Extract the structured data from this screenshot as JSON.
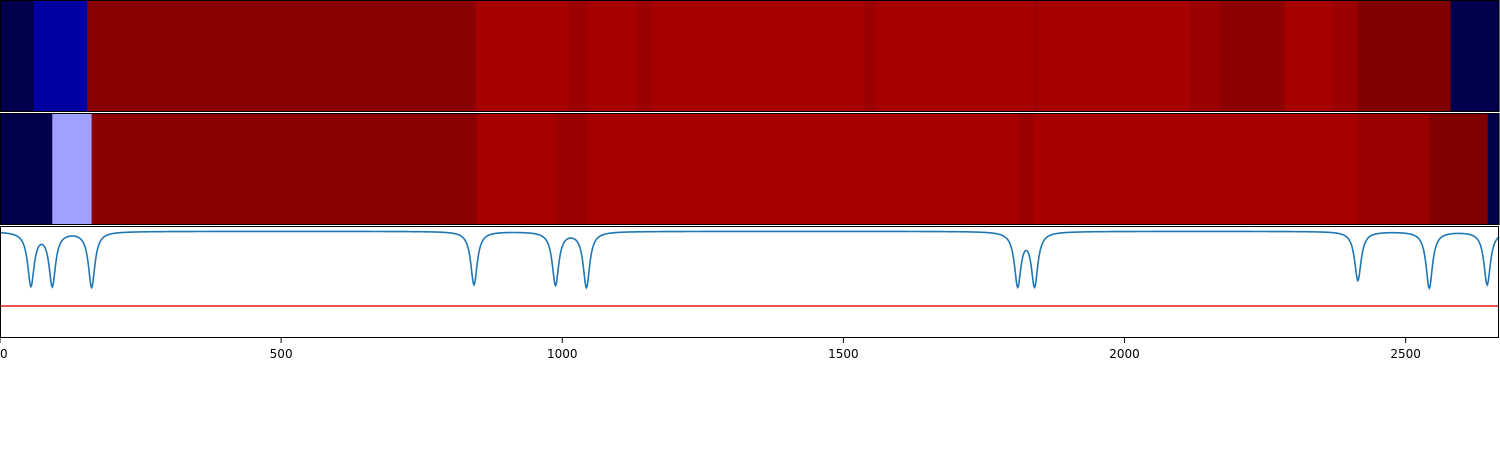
{
  "chart_data": [
    {
      "type": "heatmap",
      "row": "top",
      "xlim": [
        0,
        2666
      ],
      "colormap": "seismic",
      "segments": [
        {
          "x0": 0,
          "x1": 60,
          "color": "#00004c"
        },
        {
          "x0": 60,
          "x1": 155,
          "color": "#0000a3"
        },
        {
          "x0": 155,
          "x1": 846,
          "color": "#8b0000"
        },
        {
          "x0": 846,
          "x1": 1012,
          "color": "#a70000"
        },
        {
          "x0": 1012,
          "x1": 1046,
          "color": "#9a0000"
        },
        {
          "x0": 1046,
          "x1": 1133,
          "color": "#a70000"
        },
        {
          "x0": 1133,
          "x1": 1158,
          "color": "#9a0000"
        },
        {
          "x0": 1158,
          "x1": 1536,
          "color": "#a70000"
        },
        {
          "x0": 1536,
          "x1": 1558,
          "color": "#9a0000"
        },
        {
          "x0": 1558,
          "x1": 1840,
          "color": "#a70000"
        },
        {
          "x0": 1840,
          "x1": 1844,
          "color": "#9a0000"
        },
        {
          "x0": 1844,
          "x1": 2117,
          "color": "#a70000"
        },
        {
          "x0": 2117,
          "x1": 2170,
          "color": "#9a0000"
        },
        {
          "x0": 2170,
          "x1": 2285,
          "color": "#8e0000"
        },
        {
          "x0": 2285,
          "x1": 2370,
          "color": "#a70000"
        },
        {
          "x0": 2370,
          "x1": 2414,
          "color": "#9a0000"
        },
        {
          "x0": 2414,
          "x1": 2580,
          "color": "#800000"
        },
        {
          "x0": 2580,
          "x1": 2666,
          "color": "#00004c"
        }
      ]
    },
    {
      "type": "heatmap",
      "row": "middle",
      "xlim": [
        0,
        2666
      ],
      "colormap": "seismic",
      "segments": [
        {
          "x0": 0,
          "x1": 93,
          "color": "#00004c"
        },
        {
          "x0": 93,
          "x1": 163,
          "color": "#a0a0ff"
        },
        {
          "x0": 163,
          "x1": 848,
          "color": "#8b0000"
        },
        {
          "x0": 848,
          "x1": 988,
          "color": "#a70000"
        },
        {
          "x0": 988,
          "x1": 1044,
          "color": "#9a0000"
        },
        {
          "x0": 1044,
          "x1": 1810,
          "color": "#a70000"
        },
        {
          "x0": 1810,
          "x1": 1838,
          "color": "#9a0000"
        },
        {
          "x0": 1838,
          "x1": 2415,
          "color": "#a70000"
        },
        {
          "x0": 2415,
          "x1": 2542,
          "color": "#9a0000"
        },
        {
          "x0": 2542,
          "x1": 2646,
          "color": "#800000"
        },
        {
          "x0": 2646,
          "x1": 2666,
          "color": "#00004c"
        }
      ]
    },
    {
      "type": "line",
      "row": "bottom",
      "xlim": [
        0,
        2666
      ],
      "ylim": [
        -1.0,
        0.05
      ],
      "baseline": 0,
      "dips": [
        {
          "x": 55,
          "depth": 0.5
        },
        {
          "x": 93,
          "depth": 0.5
        },
        {
          "x": 163,
          "depth": 0.52
        },
        {
          "x": 843,
          "depth": 0.5
        },
        {
          "x": 988,
          "depth": 0.5
        },
        {
          "x": 1043,
          "depth": 0.52
        },
        {
          "x": 1810,
          "depth": 0.5
        },
        {
          "x": 1840,
          "depth": 0.5
        },
        {
          "x": 2415,
          "depth": 0.46
        },
        {
          "x": 2542,
          "depth": 0.53
        },
        {
          "x": 2645,
          "depth": 0.5
        }
      ],
      "threshold": -0.7,
      "line_color": "#1f77b4",
      "threshold_color": "#e41a1c",
      "xticks": [
        0,
        500,
        1000,
        1500,
        2000,
        2500
      ]
    }
  ]
}
